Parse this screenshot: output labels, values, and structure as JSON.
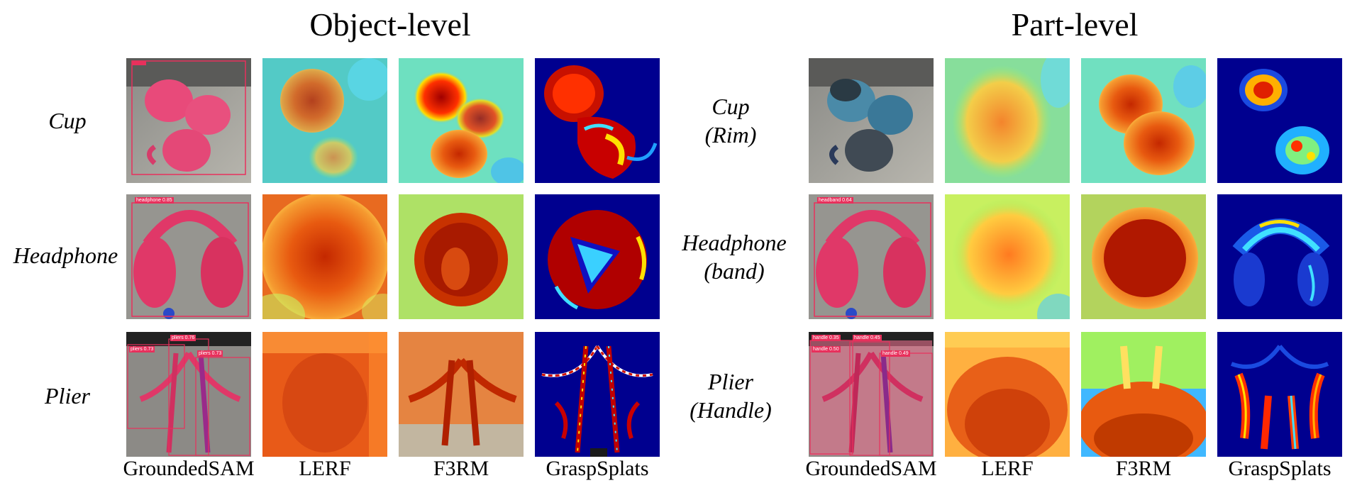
{
  "sections": [
    {
      "title": "Object-level",
      "rows": [
        {
          "label": [
            "Cup"
          ],
          "tags": [
            ""
          ]
        },
        {
          "label": [
            "Headphone"
          ],
          "tags": [
            "headphone 0.85"
          ]
        },
        {
          "label": [
            "Plier"
          ],
          "tags": [
            "pliers 0.73",
            "pliers 0.76",
            "pliers 0.73"
          ]
        }
      ]
    },
    {
      "title": "Part-level",
      "rows": [
        {
          "label": [
            "Cup",
            "(Rim)"
          ],
          "tags": []
        },
        {
          "label": [
            "Headphone",
            "(band)"
          ],
          "tags": [
            "headband 0.64"
          ]
        },
        {
          "label": [
            "Plier",
            "(Handle)"
          ],
          "tags": [
            "handle 0.35",
            "handle 0.45",
            "handle 0.50",
            "handle 0.49"
          ]
        }
      ]
    }
  ],
  "columns": [
    "GroundedSAM",
    "LERF",
    "F3RM",
    "GraspSplats"
  ],
  "colors": {
    "mask": "#e8305c",
    "jet_low": "#00008f",
    "jet_high": "#b00000"
  }
}
